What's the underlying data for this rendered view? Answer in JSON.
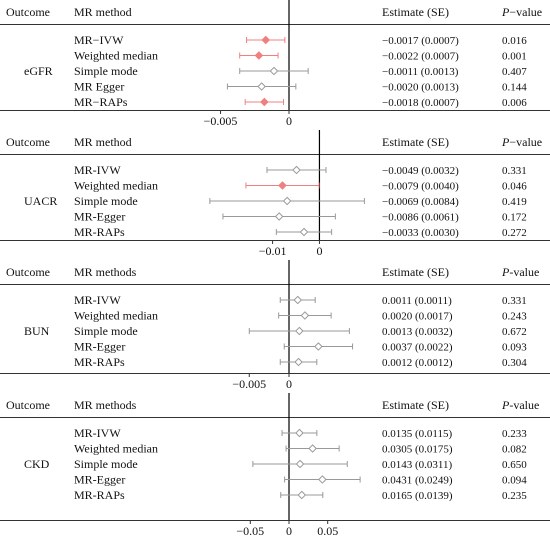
{
  "chart_data": [
    {
      "type": "forest",
      "outcome": "eGFR",
      "headers": {
        "outcome": "Outcome",
        "method": "MR method",
        "estimate": "Estimate (SE)",
        "p": "P",
        "p_suffix": "−value"
      },
      "xlim": [
        -0.0065,
        0.0065
      ],
      "xticks": [
        {
          "value": -0.005,
          "label": "−0.005"
        },
        {
          "value": 0,
          "label": "0"
        }
      ],
      "rows": [
        {
          "method": "MR−IVW",
          "estimate": -0.0017,
          "ci": [
            -0.0031,
            -0.0003
          ],
          "estimate_text": "−0.0017 (0.0007)",
          "p_text": "0.016",
          "significant": true
        },
        {
          "method": "Weighted median",
          "estimate": -0.0022,
          "ci": [
            -0.0036,
            -0.0008
          ],
          "estimate_text": "−0.0022 (0.0007)",
          "p_text": "0.001",
          "significant": true
        },
        {
          "method": "Simple mode",
          "estimate": -0.0011,
          "ci": [
            -0.0036,
            0.0014
          ],
          "estimate_text": "−0.0011 (0.0013)",
          "p_text": "0.407",
          "significant": false
        },
        {
          "method": "MR Egger",
          "estimate": -0.002,
          "ci": [
            -0.0045,
            0.0005
          ],
          "estimate_text": "−0.0020 (0.0013)",
          "p_text": "0.144",
          "significant": false
        },
        {
          "method": "MR−RAPs",
          "estimate": -0.0018,
          "ci": [
            -0.0032,
            -0.0004
          ],
          "estimate_text": "−0.0018 (0.0007)",
          "p_text": "0.006",
          "significant": true
        }
      ]
    },
    {
      "type": "forest",
      "outcome": "UACR",
      "headers": {
        "outcome": "Outcome",
        "method": "MR method",
        "estimate": "Estimate (SE)",
        "p": "P",
        "p_suffix": "−value"
      },
      "xlim": [
        -0.0255,
        0.0125
      ],
      "xticks": [
        {
          "value": -0.01,
          "label": "−0.01"
        },
        {
          "value": 0,
          "label": "0"
        }
      ],
      "rows": [
        {
          "method": "MR-IVW",
          "estimate": -0.0049,
          "ci": [
            -0.0112,
            0.0014
          ],
          "estimate_text": "−0.0049 (0.0032)",
          "p_text": "0.331",
          "significant": false
        },
        {
          "method": "Weighted median",
          "estimate": -0.0079,
          "ci": [
            -0.0157,
            -0.0001
          ],
          "estimate_text": "−0.0079 (0.0040)",
          "p_text": "0.046",
          "significant": true
        },
        {
          "method": "Simple mode",
          "estimate": -0.0069,
          "ci": [
            -0.0234,
            0.0096
          ],
          "estimate_text": "−0.0069 (0.0084)",
          "p_text": "0.419",
          "significant": false
        },
        {
          "method": "MR-Egger",
          "estimate": -0.0086,
          "ci": [
            -0.0206,
            0.0034
          ],
          "estimate_text": "−0.0086 (0.0061)",
          "p_text": "0.172",
          "significant": false
        },
        {
          "method": "MR-RAPs",
          "estimate": -0.0033,
          "ci": [
            -0.0092,
            0.0026
          ],
          "estimate_text": "−0.0033 (0.0030)",
          "p_text": "0.272",
          "significant": false
        }
      ]
    },
    {
      "type": "forest",
      "outcome": "BUN",
      "headers": {
        "outcome": "Outcome",
        "method": "MR methods",
        "estimate": "Estimate (SE)",
        "p": "P",
        "p_suffix": "-value"
      },
      "xlim": [
        -0.0112,
        0.0112
      ],
      "xticks": [
        {
          "value": -0.005,
          "label": "−0.005"
        },
        {
          "value": 0,
          "label": "0"
        }
      ],
      "rows": [
        {
          "method": "MR-IVW",
          "estimate": 0.0011,
          "ci": [
            -0.0011,
            0.0033
          ],
          "estimate_text": "0.0011 (0.0011)",
          "p_text": "0.331",
          "significant": false
        },
        {
          "method": "Weighted median",
          "estimate": 0.002,
          "ci": [
            -0.0013,
            0.0053
          ],
          "estimate_text": "0.0020 (0.0017)",
          "p_text": "0.243",
          "significant": false
        },
        {
          "method": "Simple mode",
          "estimate": 0.0013,
          "ci": [
            -0.005,
            0.0076
          ],
          "estimate_text": "0.0013 (0.0032)",
          "p_text": "0.672",
          "significant": false
        },
        {
          "method": "MR-Egger",
          "estimate": 0.0037,
          "ci": [
            -0.0006,
            0.008
          ],
          "estimate_text": "0.0037 (0.0022)",
          "p_text": "0.093",
          "significant": false
        },
        {
          "method": "MR-RAPs",
          "estimate": 0.0012,
          "ci": [
            -0.0011,
            0.0035
          ],
          "estimate_text": "0.0012 (0.0012)",
          "p_text": "0.304",
          "significant": false
        }
      ]
    },
    {
      "type": "forest",
      "outcome": "CKD",
      "headers": {
        "outcome": "Outcome",
        "method": "MR methods",
        "estimate": "Estimate (SE)",
        "p": "P",
        "p_suffix": "-value"
      },
      "xlim": [
        -0.115,
        0.115
      ],
      "xticks": [
        {
          "value": -0.05,
          "label": "−0.05"
        },
        {
          "value": 0,
          "label": "0"
        },
        {
          "value": 0.05,
          "label": "0.05"
        }
      ],
      "rows": [
        {
          "method": "MR-IVW",
          "estimate": 0.0135,
          "ci": [
            -0.009,
            0.036
          ],
          "estimate_text": "0.0135 (0.0115)",
          "p_text": "0.233",
          "significant": false
        },
        {
          "method": "Weighted median",
          "estimate": 0.0305,
          "ci": [
            -0.0038,
            0.0648
          ],
          "estimate_text": "0.0305 (0.0175)",
          "p_text": "0.082",
          "significant": false
        },
        {
          "method": "Simple mode",
          "estimate": 0.0143,
          "ci": [
            -0.0467,
            0.0753
          ],
          "estimate_text": "0.0143 (0.0311)",
          "p_text": "0.650",
          "significant": false
        },
        {
          "method": "MR-Egger",
          "estimate": 0.0431,
          "ci": [
            -0.0057,
            0.0919
          ],
          "estimate_text": "0.0431 (0.0249)",
          "p_text": "0.094",
          "significant": false
        },
        {
          "method": "MR-RAPs",
          "estimate": 0.0165,
          "ci": [
            -0.0107,
            0.0437
          ],
          "estimate_text": "0.0165 (0.0139)",
          "p_text": "0.235",
          "significant": false
        }
      ]
    }
  ],
  "colors": {
    "significant": "#f08080",
    "nonsignificant": "#999999",
    "rule": "#333333"
  }
}
